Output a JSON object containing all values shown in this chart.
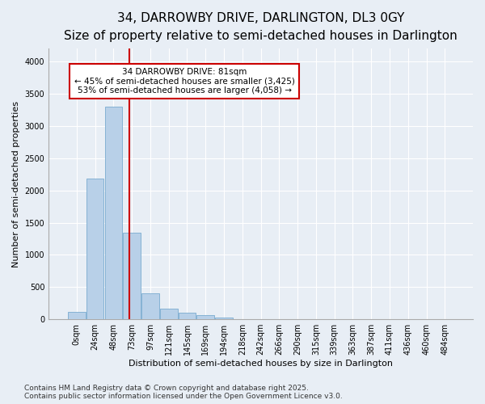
{
  "title1": "34, DARROWBY DRIVE, DARLINGTON, DL3 0GY",
  "title2": "Size of property relative to semi-detached houses in Darlington",
  "xlabel": "Distribution of semi-detached houses by size in Darlington",
  "ylabel": "Number of semi-detached properties",
  "bar_labels": [
    "0sqm",
    "24sqm",
    "48sqm",
    "73sqm",
    "97sqm",
    "121sqm",
    "145sqm",
    "169sqm",
    "194sqm",
    "218sqm",
    "242sqm",
    "266sqm",
    "290sqm",
    "315sqm",
    "339sqm",
    "363sqm",
    "387sqm",
    "411sqm",
    "436sqm",
    "460sqm",
    "484sqm"
  ],
  "bar_values": [
    110,
    2180,
    3300,
    1340,
    400,
    170,
    100,
    60,
    30,
    0,
    0,
    0,
    0,
    0,
    0,
    0,
    0,
    0,
    0,
    0,
    0
  ],
  "bar_color": "#b8d0e8",
  "bar_edge_color": "#7aabcf",
  "marker_color": "#cc0000",
  "annotation_title": "34 DARROWBY DRIVE: 81sqm",
  "annotation_line1": "← 45% of semi-detached houses are smaller (3,425)",
  "annotation_line2": "53% of semi-detached houses are larger (4,058) →",
  "annotation_box_color": "#ffffff",
  "annotation_box_edge": "#cc0000",
  "ylim": [
    0,
    4200
  ],
  "yticks": [
    0,
    500,
    1000,
    1500,
    2000,
    2500,
    3000,
    3500,
    4000
  ],
  "footer1": "Contains HM Land Registry data © Crown copyright and database right 2025.",
  "footer2": "Contains public sector information licensed under the Open Government Licence v3.0.",
  "bg_color": "#e8eef5",
  "plot_bg_color": "#e8eef5",
  "grid_color": "#ffffff",
  "title1_fontsize": 11,
  "title2_fontsize": 9.5,
  "axis_fontsize": 8,
  "tick_fontsize": 7,
  "footer_fontsize": 6.5
}
